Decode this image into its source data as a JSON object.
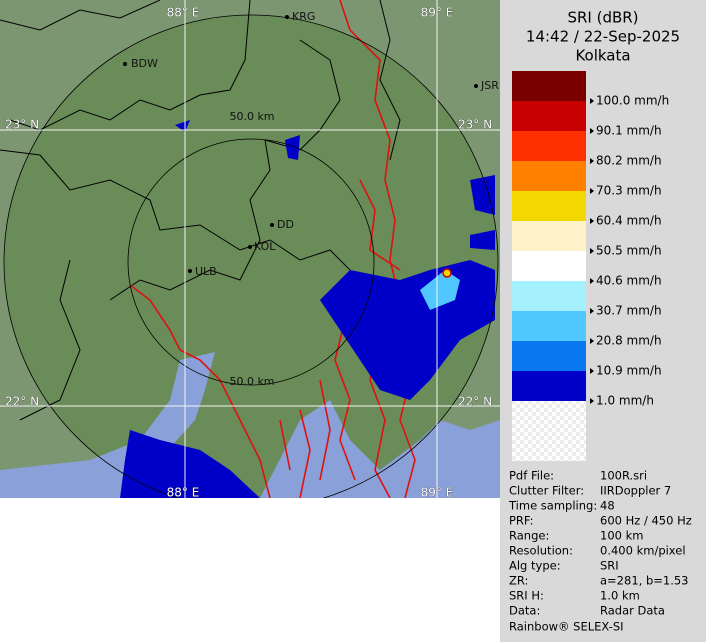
{
  "map": {
    "lon_labels_top": [
      "88° E",
      "89° E"
    ],
    "lon_labels_bottom": [
      "88° E",
      "89° E"
    ],
    "lat_labels_left": [
      "23° N",
      "22° N"
    ],
    "lat_labels_right": [
      "23° N",
      "22° N"
    ],
    "places": [
      "KRG",
      "BDW",
      "JSR",
      "DD",
      "KOL",
      "ULB"
    ],
    "range_labels": [
      "50.0 km",
      "50.0 km"
    ]
  },
  "panel": {
    "title": "SRI (dBR)",
    "time": "14:42 / 22-Sep-2025",
    "station": "Kolkata",
    "legend": {
      "colors": [
        "#7a0000",
        "#c80000",
        "#ff3000",
        "#ff8000",
        "#f2d800",
        "#fff2c8",
        "#ffffff",
        "#a4f0ff",
        "#50c8ff",
        "#0a78f0",
        "#0000c8"
      ],
      "labels": [
        "100.0 mm/h",
        "90.1 mm/h",
        "80.2 mm/h",
        "70.3 mm/h",
        "60.4 mm/h",
        "50.5 mm/h",
        "40.6 mm/h",
        "30.7 mm/h",
        "20.8 mm/h",
        "10.9 mm/h",
        "1.0 mm/h"
      ]
    },
    "info": [
      [
        "Pdf File:",
        "100R.sri"
      ],
      [
        "Clutter Filter:",
        "IIRDoppler 7"
      ],
      [
        "Time sampling:",
        "48"
      ],
      [
        "PRF:",
        "600 Hz / 450 Hz"
      ],
      [
        "Range:",
        "100 km"
      ],
      [
        "Resolution:",
        "0.400 km/pixel"
      ],
      [
        "Alg type:",
        "SRI"
      ],
      [
        "ZR:",
        "a=281, b=1.53"
      ],
      [
        "SRI H:",
        "1.0 km"
      ],
      [
        "Data:",
        "Radar Data"
      ]
    ],
    "footer": "Rainbow® SELEX-SI"
  }
}
